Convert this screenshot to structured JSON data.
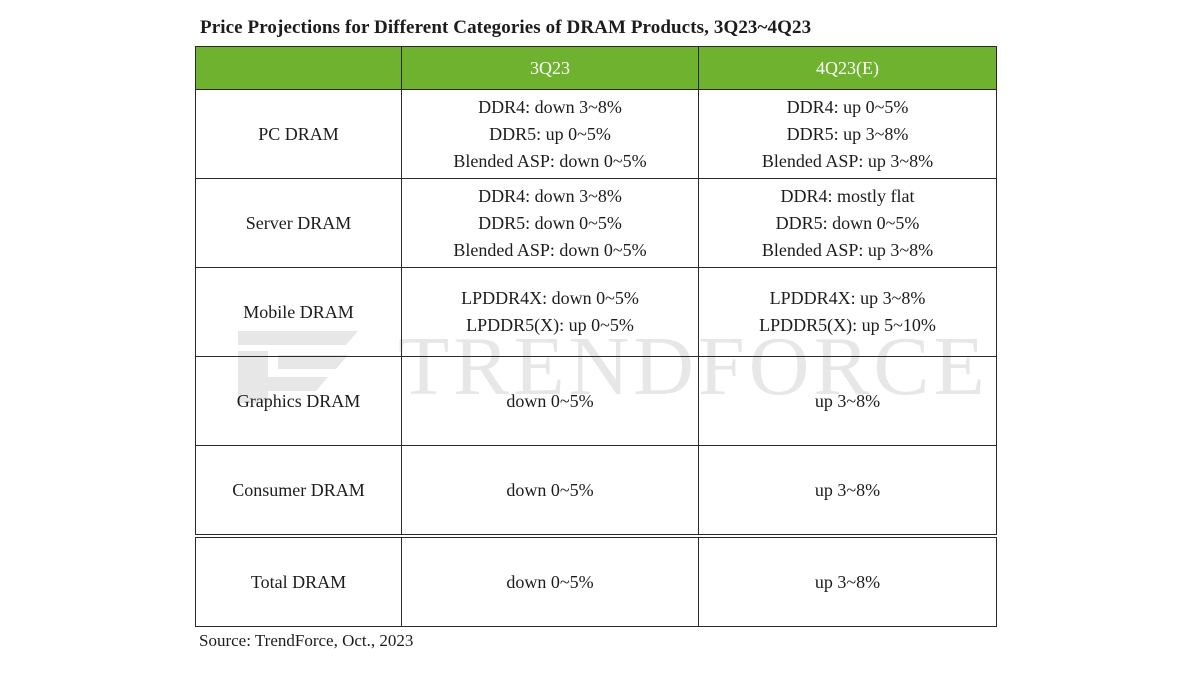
{
  "title": "Price Projections for Different Categories of DRAM Products, 3Q23~4Q23",
  "watermark": "TRENDFORCE",
  "colors": {
    "header_bg": "#6fb22f",
    "header_text": "#ffffff",
    "border": "#2a2a2a"
  },
  "chart_data": {
    "type": "table",
    "title": "Price Projections for Different Categories of DRAM Products, 3Q23~4Q23",
    "columns": [
      "",
      "3Q23",
      "4Q23(E)"
    ],
    "rows": [
      {
        "category": "PC DRAM",
        "q3": [
          "DDR4: down 3~8%",
          "DDR5: up 0~5%",
          "Blended ASP: down 0~5%"
        ],
        "q4": [
          "DDR4: up 0~5%",
          "DDR5:  up 3~8%",
          "Blended ASP: up 3~8%"
        ]
      },
      {
        "category": "Server DRAM",
        "q3": [
          "DDR4: down 3~8%",
          "DDR5: down 0~5%",
          "Blended ASP: down 0~5%"
        ],
        "q4": [
          "DDR4: mostly flat",
          "DDR5: down 0~5%",
          "Blended ASP: up 3~8%"
        ]
      },
      {
        "category": "Mobile DRAM",
        "q3": [
          "LPDDR4X: down 0~5%",
          "LPDDR5(X): up 0~5%"
        ],
        "q4": [
          "LPDDR4X: up 3~8%",
          "LPDDR5(X): up 5~10%"
        ]
      },
      {
        "category": "Graphics DRAM",
        "q3": [
          "down 0~5%"
        ],
        "q4": [
          "up  3~8%"
        ]
      },
      {
        "category": "Consumer DRAM",
        "q3": [
          "down 0~5%"
        ],
        "q4": [
          "up  3~8%"
        ]
      },
      {
        "category": "Total DRAM",
        "q3": [
          "down 0~5%"
        ],
        "q4": [
          "up  3~8%"
        ]
      }
    ]
  },
  "source": "Source: TrendForce, Oct.,  2023"
}
